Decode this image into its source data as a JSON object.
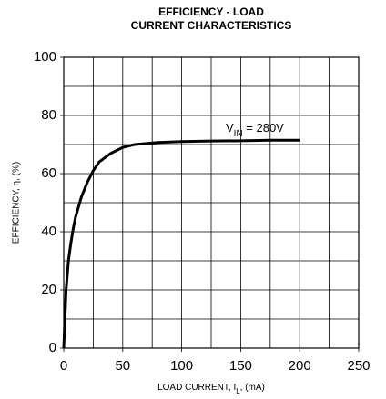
{
  "chart_data": {
    "type": "line",
    "title": [
      "EFFICIENCY - LOAD",
      "CURRENT CHARACTERISTICS"
    ],
    "x_label": {
      "text": "LOAD CURRENT, I",
      "sub": "L",
      "rest": ", (mA)"
    },
    "y_label": "EFFICIENCY, η, (%)",
    "annotation": {
      "text": "V",
      "sub": "IN",
      "rest": " = 280V"
    },
    "xlim": [
      0,
      250
    ],
    "ylim": [
      0,
      100
    ],
    "xticks": [
      0,
      50,
      100,
      150,
      200,
      250
    ],
    "yticks": [
      0,
      20,
      40,
      60,
      80,
      100
    ],
    "xgrid_step": 25,
    "ygrid_step": 10,
    "grid": true,
    "series": [
      {
        "color": "#000000",
        "x": [
          0,
          1,
          2,
          4,
          6,
          8,
          10,
          15,
          20,
          25,
          30,
          40,
          50,
          60,
          80,
          100,
          125,
          150,
          175,
          200
        ],
        "values": [
          0,
          10,
          20,
          30,
          36,
          41,
          45,
          52,
          57,
          61,
          64,
          67,
          69,
          70,
          70.7,
          71,
          71.2,
          71.3,
          71.5,
          71.5
        ]
      }
    ]
  }
}
